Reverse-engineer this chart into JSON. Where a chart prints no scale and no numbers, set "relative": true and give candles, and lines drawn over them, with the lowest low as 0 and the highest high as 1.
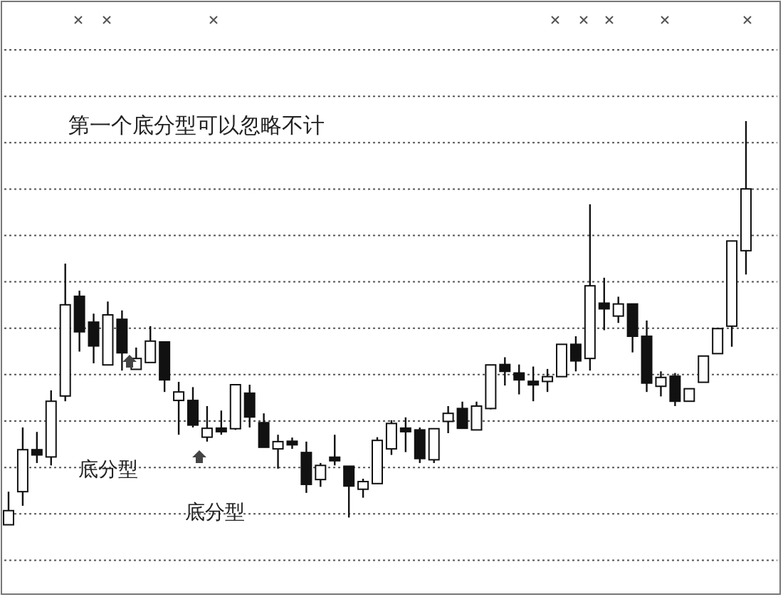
{
  "chart_data": {
    "type": "candlestick",
    "relative": true,
    "grid": "y",
    "categories": [
      null,
      null,
      null,
      null,
      null,
      null,
      null,
      null,
      null,
      null,
      null,
      null,
      null,
      null,
      null,
      null,
      null,
      null,
      null,
      null,
      null,
      null,
      null,
      null,
      null,
      null,
      null,
      null,
      null,
      null,
      null,
      null,
      null,
      null,
      null,
      null,
      null,
      null,
      null,
      null,
      null,
      null,
      null,
      null,
      null,
      null,
      null,
      null,
      null,
      null,
      null,
      null,
      null
    ],
    "ohlc": [
      [
        0,
        0.082,
        0,
        0.035
      ],
      [
        0.082,
        0.241,
        0.047,
        0.186
      ],
      [
        0.186,
        0.23,
        0.153,
        0.173
      ],
      [
        0.168,
        0.333,
        0.147,
        0.306
      ],
      [
        0.319,
        0.647,
        0.306,
        0.545
      ],
      [
        0.566,
        0.58,
        0.429,
        0.478
      ],
      [
        0.502,
        0.523,
        0.4,
        0.443
      ],
      [
        0.396,
        0.553,
        0.396,
        0.52
      ],
      [
        0.509,
        0.531,
        0.382,
        0.426
      ],
      [
        0.385,
        0.439,
        0.385,
        0.412
      ],
      [
        0.402,
        0.492,
        0.402,
        0.455
      ],
      [
        0.453,
        0.453,
        0.329,
        0.359
      ],
      [
        0.308,
        0.354,
        0.223,
        0.329
      ],
      [
        0.308,
        0.341,
        0.241,
        0.247
      ],
      [
        0.217,
        0.294,
        0.206,
        0.239
      ],
      [
        0.235,
        0.283,
        0.223,
        0.235
      ],
      [
        0.238,
        0.347,
        0.235,
        0.347
      ],
      [
        0.326,
        0.347,
        0.241,
        0.267
      ],
      [
        0.253,
        0.276,
        0.192,
        0.192
      ],
      [
        0.188,
        0.223,
        0.139,
        0.206
      ],
      [
        0.206,
        0.216,
        0.188,
        0.199
      ],
      [
        0.179,
        0.206,
        0.079,
        0.1
      ],
      [
        0.112,
        0.153,
        0.094,
        0.147
      ],
      [
        0.167,
        0.223,
        0.147,
        0.159
      ],
      [
        0.145,
        0.145,
        0.018,
        0.096
      ],
      [
        0.088,
        0.114,
        0.067,
        0.107
      ],
      [
        0.102,
        0.217,
        0.102,
        0.209
      ],
      [
        0.188,
        0.259,
        0.173,
        0.251
      ],
      [
        0.235,
        0.266,
        0.18,
        0.235
      ],
      [
        0.235,
        0.241,
        0.153,
        0.164
      ],
      [
        0.161,
        0.238,
        0.153,
        0.238
      ],
      [
        0.256,
        0.294,
        0.227,
        0.276
      ],
      [
        0.288,
        0.305,
        0.239,
        0.239
      ],
      [
        0.235,
        0.305,
        0.235,
        0.294
      ],
      [
        0.288,
        0.396,
        0.286,
        0.396
      ],
      [
        0.397,
        0.415,
        0.345,
        0.38
      ],
      [
        0.376,
        0.397,
        0.323,
        0.359
      ],
      [
        0.351,
        0.392,
        0.306,
        0.351
      ],
      [
        0.355,
        0.386,
        0.329,
        0.367
      ],
      [
        0.367,
        0.447,
        0.367,
        0.447
      ],
      [
        0.447,
        0.467,
        0.38,
        0.406
      ],
      [
        0.412,
        0.794,
        0.382,
        0.592
      ],
      [
        0.549,
        0.612,
        0.482,
        0.535
      ],
      [
        0.517,
        0.565,
        0.5,
        0.547
      ],
      [
        0.547,
        0.547,
        0.427,
        0.467
      ],
      [
        0.467,
        0.506,
        0.329,
        0.351
      ],
      [
        0.343,
        0.38,
        0.318,
        0.365
      ],
      [
        0.368,
        0.376,
        0.294,
        0.306
      ],
      [
        0.306,
        0.337,
        0.306,
        0.337
      ],
      [
        0.353,
        0.418,
        0.353,
        0.418
      ],
      [
        0.424,
        0.486,
        0.424,
        0.486
      ],
      [
        0.492,
        0.703,
        0.441,
        0.703
      ],
      [
        0.679,
        1,
        0.62,
        0.832
      ]
    ],
    "annotations": [
      "第一个底分型可以忽略不计",
      "底分型",
      "底分型"
    ]
  }
}
